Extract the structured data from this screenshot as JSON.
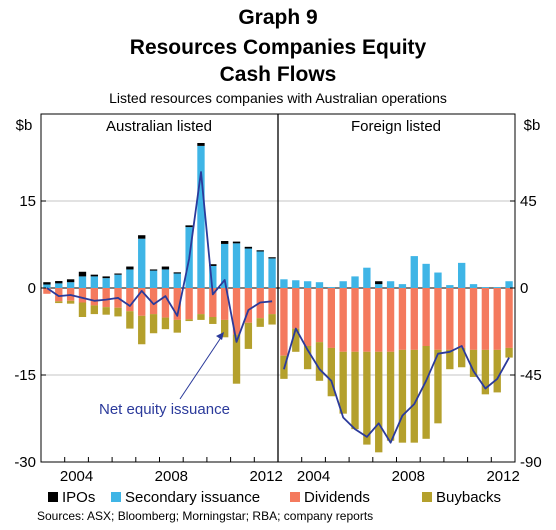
{
  "chart_data": {
    "type": "bar",
    "graph_label": "Graph 9",
    "title_lines": [
      "Resources Companies Equity",
      "Cash Flows"
    ],
    "subtitle": "Listed resources companies with Australian operations",
    "unit_left": "$b",
    "unit_right": "$b",
    "source": "Sources: ASX; Bloomberg; Morningstar; RBA; company reports",
    "annotation": "Net equity issuance",
    "colors": {
      "ipos": "#000000",
      "secondary": "#3fb5e6",
      "dividends": "#f47a5e",
      "buybacks": "#b4a02c",
      "net": "#2b3a9b"
    },
    "legend": [
      {
        "key": "ipos",
        "label": "IPOs"
      },
      {
        "key": "secondary",
        "label": "Secondary issuance"
      },
      {
        "key": "dividends",
        "label": "Dividends"
      },
      {
        "key": "buybacks",
        "label": "Buybacks"
      }
    ],
    "panels": [
      {
        "name": "Australian listed",
        "x_ticks": [
          "2004",
          "2008",
          "2012"
        ],
        "y_ticks": [
          "15",
          "0",
          "-15",
          "-30"
        ],
        "ylim": [
          -30,
          30
        ],
        "x": [
          "2003H1",
          "2003H2",
          "2004H1",
          "2004H2",
          "2005H1",
          "2005H2",
          "2006H1",
          "2006H2",
          "2007H1",
          "2007H2",
          "2008H1",
          "2008H2",
          "2009H1",
          "2009H2",
          "2010H1",
          "2010H2",
          "2011H1",
          "2011H2",
          "2012H1",
          "2012H2"
        ],
        "ipos": [
          0.4,
          0.4,
          0.5,
          0.8,
          0.3,
          0.3,
          0.2,
          0.5,
          0.6,
          0.2,
          0.5,
          0.2,
          0.3,
          0.5,
          0.3,
          0.5,
          0.3,
          0.3,
          0.2,
          0.2
        ],
        "secondary": [
          0.6,
          0.8,
          1.0,
          2.0,
          2.0,
          1.7,
          2.3,
          3.2,
          8.5,
          3.0,
          3.2,
          2.5,
          10.5,
          24.5,
          3.8,
          7.6,
          7.7,
          6.8,
          6.3,
          5.1
        ],
        "dividends": [
          -1.0,
          -2.3,
          -2.2,
          -2.5,
          -3.0,
          -3.3,
          -3.4,
          -4.0,
          -4.8,
          -4.5,
          -5.1,
          -5.5,
          -5.4,
          -4.5,
          -5.0,
          -5.5,
          -8.0,
          -6.0,
          -5.2,
          -4.5
        ],
        "buybacks": [
          0.0,
          -0.3,
          -0.5,
          -2.5,
          -1.5,
          -1.3,
          -1.5,
          -3.0,
          -4.9,
          -3.3,
          -2.0,
          -2.2,
          -0.3,
          -1.0,
          -1.2,
          -3.0,
          -8.5,
          -4.5,
          -1.5,
          -1.8
        ],
        "net": [
          0.0,
          -1.4,
          -1.2,
          -1.7,
          -2.2,
          -2.0,
          -1.7,
          -3.1,
          -0.5,
          -2.8,
          -1.4,
          -4.8,
          5.0,
          20.0,
          -1.1,
          1.4,
          -9.3,
          -3.8,
          -2.5,
          -2.3
        ]
      },
      {
        "name": "Foreign listed",
        "x_ticks": [
          "2004",
          "2008",
          "2012"
        ],
        "y_ticks": [
          "45",
          "0",
          "-45",
          "-90"
        ],
        "ylim": [
          -90,
          90
        ],
        "x": [
          "2003H1",
          "2003H2",
          "2004H1",
          "2004H2",
          "2005H1",
          "2005H2",
          "2006H1",
          "2006H2",
          "2007H1",
          "2007H2",
          "2008H1",
          "2008H2",
          "2009H1",
          "2009H2",
          "2010H1",
          "2010H2",
          "2011H1",
          "2011H2",
          "2012H1",
          "2012H2"
        ],
        "ipos": [
          0,
          0,
          0,
          0,
          0,
          0,
          0,
          0,
          1.5,
          0,
          0,
          0,
          0,
          0,
          0,
          0,
          0,
          0,
          0,
          0
        ],
        "secondary": [
          4.5,
          4.0,
          3.5,
          3.0,
          0.5,
          3.5,
          6.0,
          10.5,
          2.0,
          3.5,
          2.0,
          16.5,
          12.5,
          8.0,
          1.5,
          13.0,
          2.0,
          0.5,
          0.5,
          3.5
        ],
        "dividends": [
          -35,
          -21,
          -30,
          -28,
          -31,
          -33,
          -33,
          -33,
          -33,
          -33,
          -32,
          -32,
          -30,
          -32,
          -32,
          -31,
          -32,
          -32,
          -32,
          -31
        ],
        "buybacks": [
          -12,
          -12,
          -12,
          -20,
          -25,
          -32,
          -40,
          -48,
          -52,
          -46,
          -48,
          -48,
          -48,
          -38,
          -10,
          -10,
          -14,
          -23,
          -22,
          -5
        ],
        "net": [
          -42,
          -21,
          -32,
          -42,
          -48,
          -67,
          -73,
          -77,
          -70,
          -80,
          -66,
          -60,
          -48,
          -34,
          -33,
          -30,
          -43,
          -52,
          -47,
          -36
        ]
      }
    ]
  }
}
